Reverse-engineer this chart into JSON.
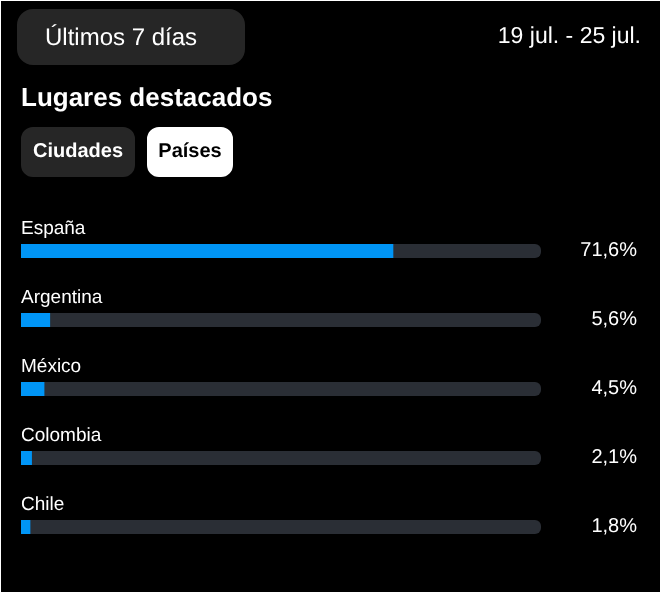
{
  "chart_data": {
    "type": "bar",
    "orientation": "horizontal",
    "title": "Lugares destacados",
    "annotations": [
      "Últimos 7 días",
      "19 jul. - 25 jul.",
      "Ciudades",
      "Países"
    ],
    "categories": [
      "España",
      "Argentina",
      "México",
      "Colombia",
      "Chile"
    ],
    "values": [
      71.6,
      5.6,
      4.5,
      2.1,
      1.8
    ],
    "value_labels": [
      "71,6%",
      "5,6%",
      "4,5%",
      "2,1%",
      "1,8%"
    ],
    "color": "#0095f6",
    "xlim": [
      0,
      100
    ],
    "grid": false
  }
}
